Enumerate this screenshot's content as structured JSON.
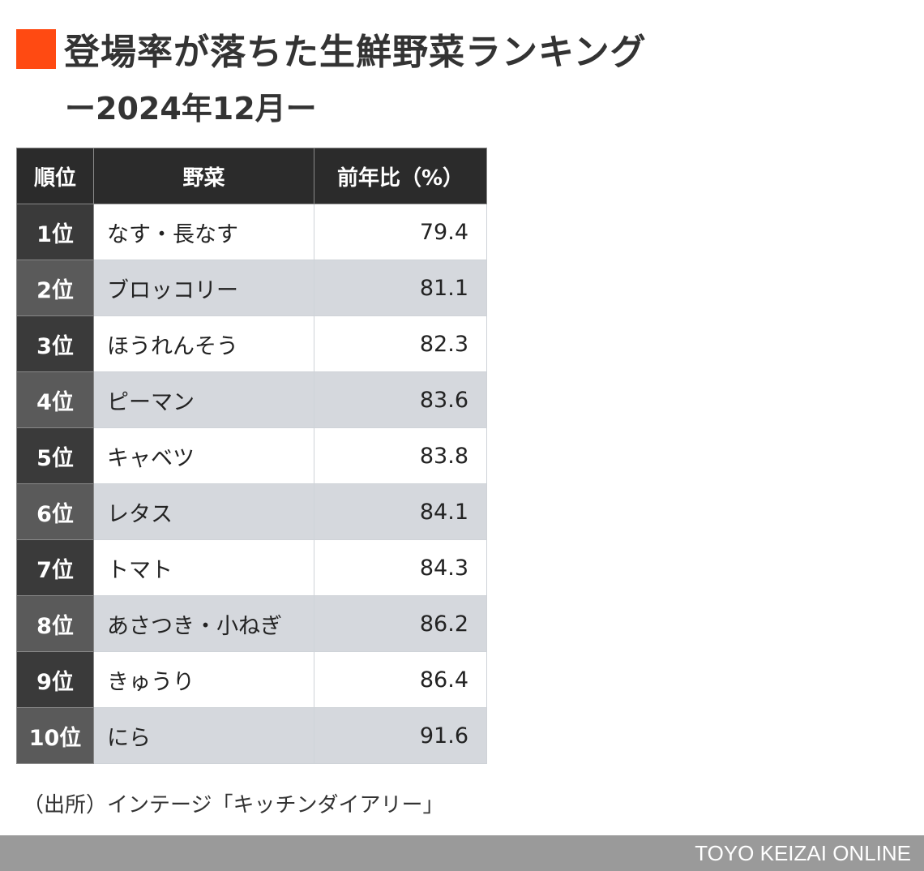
{
  "title": "登場率が落ちた生鮮野菜ランキング",
  "subtitle": "ー2024年12月ー",
  "source": "（出所）インテージ「キッチンダイアリー」",
  "footer": "TOYO KEIZAI ONLINE",
  "colors": {
    "accent": "#ff4a12",
    "header_bg": "#2b2b2b",
    "row_alt_bg": "#d5d8dd",
    "footer_bg": "#9a9a9a"
  },
  "chart_data": {
    "type": "table",
    "columns": [
      "順位",
      "野菜",
      "前年比（%）"
    ],
    "rows": [
      {
        "rank": "1位",
        "vegetable": "なす・長なす",
        "ratio": "79.4"
      },
      {
        "rank": "2位",
        "vegetable": "ブロッコリー",
        "ratio": "81.1"
      },
      {
        "rank": "3位",
        "vegetable": "ほうれんそう",
        "ratio": "82.3"
      },
      {
        "rank": "4位",
        "vegetable": "ピーマン",
        "ratio": "83.6"
      },
      {
        "rank": "5位",
        "vegetable": "キャベツ",
        "ratio": "83.8"
      },
      {
        "rank": "6位",
        "vegetable": "レタス",
        "ratio": "84.1"
      },
      {
        "rank": "7位",
        "vegetable": "トマト",
        "ratio": "84.3"
      },
      {
        "rank": "8位",
        "vegetable": "あさつき・小ねぎ",
        "ratio": "86.2"
      },
      {
        "rank": "9位",
        "vegetable": "きゅうり",
        "ratio": "86.4"
      },
      {
        "rank": "10位",
        "vegetable": "にら",
        "ratio": "91.6"
      }
    ]
  }
}
